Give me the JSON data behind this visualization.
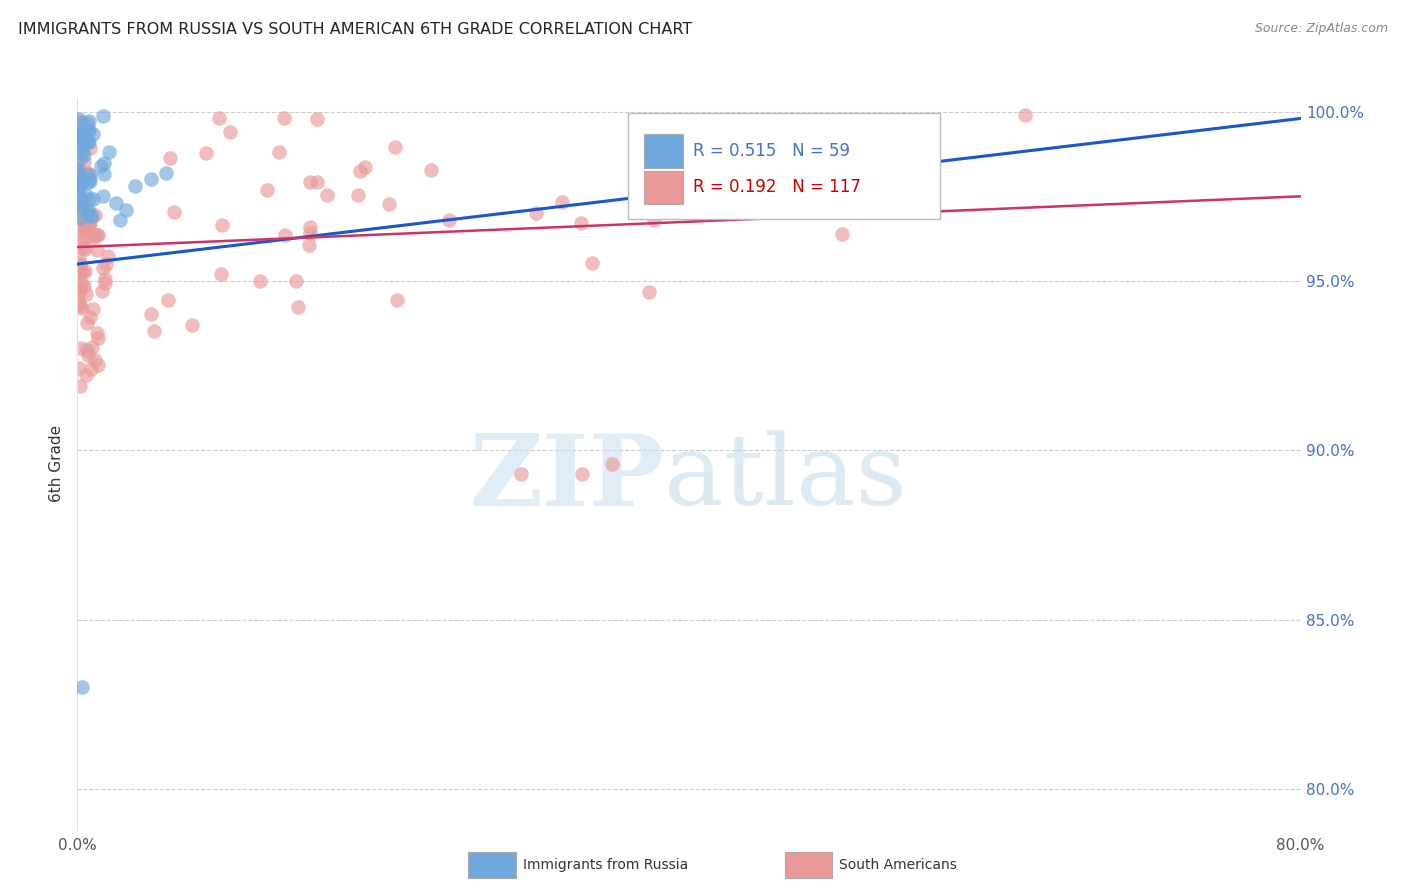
{
  "title": "IMMIGRANTS FROM RUSSIA VS SOUTH AMERICAN 6TH GRADE CORRELATION CHART",
  "source": "Source: ZipAtlas.com",
  "ylabel": "6th Grade",
  "xlim": [
    0.0,
    0.8
  ],
  "ylim": [
    0.788,
    1.004
  ],
  "xtick_positions": [
    0.0,
    0.1,
    0.2,
    0.3,
    0.4,
    0.5,
    0.6,
    0.7,
    0.8
  ],
  "xticklabels": [
    "0.0%",
    "",
    "",
    "",
    "",
    "",
    "",
    "",
    "80.0%"
  ],
  "ytick_positions": [
    0.8,
    0.85,
    0.9,
    0.95,
    1.0
  ],
  "ytick_labels": [
    "80.0%",
    "85.0%",
    "90.0%",
    "95.0%",
    "100.0%"
  ],
  "russia_R": 0.515,
  "russia_N": 59,
  "south_R": 0.192,
  "south_N": 117,
  "russia_color": "#6fa8dc",
  "south_color": "#ea9999",
  "russia_line_color": "#1a56cc",
  "south_line_color": "#cc3366",
  "legend_box_color": "#aaaaaa",
  "legend_text_color_russia": "#4472c4",
  "legend_text_color_south": "#cc0000",
  "grid_color": "#cccccc",
  "title_color": "#222222",
  "source_color": "#888888",
  "tick_color": "#4472c4",
  "ylabel_color": "#333333",
  "russia_line_x0": 0.0,
  "russia_line_x1": 0.8,
  "russia_line_y0": 0.955,
  "russia_line_y1": 0.998,
  "south_line_x0": 0.0,
  "south_line_x1": 0.8,
  "south_line_y0": 0.96,
  "south_line_y1": 0.975
}
